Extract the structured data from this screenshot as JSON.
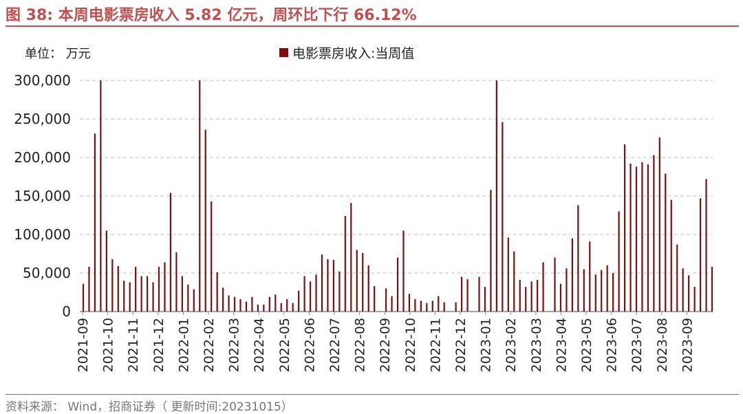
{
  "figure": {
    "title": "图 38:  本周电影票房收入 5.82 亿元，周环比下行 66.12%",
    "unit": "单位：  万元",
    "source": "资料来源：  Wind，招商证券（ 更新时间:20231015）"
  },
  "colors": {
    "accent": "#c0504d",
    "bar": "#7b0f0f",
    "grid": "#bfbfbf"
  },
  "chart_data": {
    "type": "bar",
    "ylim": [
      0,
      300000
    ],
    "yticks": [
      0,
      50000,
      100000,
      150000,
      200000,
      250000,
      300000
    ],
    "ytick_labels": [
      "0",
      "50,000",
      "100,000",
      "150,000",
      "200,000",
      "250,000",
      "300,000"
    ],
    "xtick_labels": [
      "2021-09",
      "2021-10",
      "2021-11",
      "2021-12",
      "2022-01",
      "2022-02",
      "2022-03",
      "2022-04",
      "2022-05",
      "2022-06",
      "2022-07",
      "2022-08",
      "2022-09",
      "2022-10",
      "2022-11",
      "2022-12",
      "2023-01",
      "2023-02",
      "2023-03",
      "2023-04",
      "2023-05",
      "2023-06",
      "2023-07",
      "2023-08",
      "2023-09"
    ],
    "grid": true,
    "legend_position": "top",
    "series": [
      {
        "name": "电影票房收入:当周值",
        "values": [
          36000,
          58000,
          231000,
          300000,
          105000,
          68000,
          59000,
          40000,
          38000,
          58000,
          46000,
          46000,
          38000,
          58000,
          64000,
          154000,
          77000,
          46000,
          35000,
          29000,
          300000,
          236000,
          143000,
          51000,
          31000,
          21000,
          19000,
          16000,
          13000,
          19000,
          9000,
          9000,
          19000,
          22000,
          11000,
          16000,
          11000,
          27000,
          46000,
          39000,
          48000,
          74000,
          68000,
          67000,
          52000,
          124000,
          141000,
          80000,
          76000,
          60000,
          33000,
          0,
          30000,
          20000,
          70000,
          105000,
          23000,
          16000,
          14000,
          11000,
          14000,
          20000,
          12000,
          0,
          12000,
          45000,
          42000,
          0,
          45000,
          32000,
          158000,
          300000,
          246000,
          96000,
          78000,
          41000,
          32000,
          39000,
          41000,
          64000,
          0,
          70000,
          36000,
          56000,
          95000,
          138000,
          55000,
          91000,
          48000,
          54000,
          60000,
          50000,
          130000,
          217000,
          192000,
          188000,
          194000,
          191000,
          203000,
          226000,
          179000,
          145000,
          87000,
          56000,
          47000,
          32000,
          147000,
          172000,
          58000
        ]
      }
    ]
  }
}
